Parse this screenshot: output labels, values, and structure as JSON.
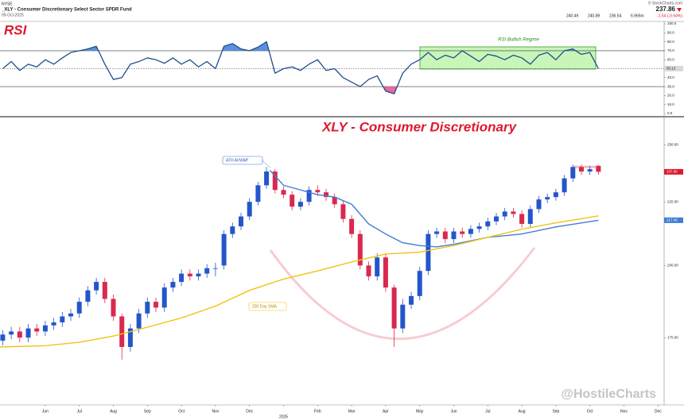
{
  "header": {
    "exchange": "NYSE",
    "title": "_XLY - Consumer Discretionary Select Sector SPDR Fund",
    "date": "09-Oct-2025",
    "source": "© StockCharts.com",
    "volume": "6.965m",
    "change": "-1.54 (-0.64%)"
  },
  "chart_data": [
    {
      "type": "line",
      "title": "RSI",
      "annotation": "RSI Bullish Regime",
      "color": "#1f4e8c",
      "x": [
        -0.25,
        0,
        0.25,
        0.5,
        0.75,
        1,
        1.25,
        1.5,
        1.75,
        2,
        2.25,
        2.5,
        2.75,
        3,
        3.25,
        3.5,
        3.75,
        4,
        4.25,
        4.5,
        4.75,
        5,
        5.25,
        5.5,
        5.75,
        6,
        6.25,
        6.5,
        6.75,
        7,
        7.25,
        7.5,
        7.75,
        8,
        8.25,
        8.5,
        8.75,
        9,
        9.25,
        9.5,
        9.75,
        10,
        10.25,
        10.5,
        10.75,
        11,
        11.25,
        11.5,
        11.75,
        12,
        12.25,
        12.5,
        12.75,
        13,
        13.25,
        13.5,
        13.75,
        14,
        14.25,
        14.5,
        14.75,
        15,
        15.25,
        15.5,
        15.75,
        16,
        16.25,
        16.5,
        16.75,
        17,
        17.25
      ],
      "values": [
        50,
        58,
        48,
        55,
        52,
        60,
        55,
        62,
        68,
        70,
        72,
        75,
        55,
        38,
        40,
        55,
        58,
        62,
        60,
        56,
        62,
        55,
        60,
        52,
        58,
        50,
        75,
        78,
        72,
        70,
        74,
        80,
        45,
        50,
        52,
        48,
        55,
        60,
        48,
        50,
        40,
        35,
        30,
        38,
        42,
        25,
        22,
        45,
        55,
        60,
        68,
        60,
        65,
        62,
        70,
        64,
        58,
        66,
        64,
        60,
        65,
        62,
        55,
        65,
        68,
        60,
        70,
        72,
        66,
        68,
        50.12
      ],
      "xlim": [
        -0.33,
        19.18
      ],
      "ylim": [
        0,
        100
      ],
      "yticks": [
        {
          "value": 0,
          "label": "0.0"
        },
        {
          "value": 10,
          "label": "10.0"
        },
        {
          "value": 20,
          "label": "20.0"
        },
        {
          "value": 30,
          "label": "30.0"
        },
        {
          "value": 40,
          "label": "40.0"
        },
        {
          "value": 50,
          "label": "50.0"
        },
        {
          "value": 60,
          "label": "60.0"
        },
        {
          "value": 70,
          "label": "70.0"
        },
        {
          "value": 80,
          "label": "80.0"
        },
        {
          "value": 90,
          "label": "90.0"
        },
        {
          "value": 100,
          "label": "100.0"
        }
      ],
      "overbought": 70,
      "midline": 50,
      "oversold": 30,
      "overbought_fill": "#5b8fe0",
      "oversold_fill": "#e86aa0"
    },
    {
      "type": "candlestick",
      "title": "XLY - Consumer Discretionary",
      "up_color": "#2456c9",
      "down_color": "#d9294f",
      "log_scale": true,
      "candles": {
        "x": [
          -0.25,
          0,
          0.25,
          0.5,
          0.75,
          1,
          1.25,
          1.5,
          1.75,
          2,
          2.25,
          2.5,
          2.75,
          3,
          3.25,
          3.5,
          3.75,
          4,
          4.25,
          4.5,
          4.75,
          5,
          5.25,
          5.5,
          5.75,
          6,
          6.25,
          6.5,
          6.75,
          7,
          7.25,
          7.5,
          7.75,
          8,
          8.25,
          8.5,
          8.75,
          9,
          9.25,
          9.5,
          9.75,
          10,
          10.25,
          10.5,
          10.75,
          11,
          11.25,
          11.5,
          11.75,
          12,
          12.25,
          12.5,
          12.75,
          13,
          13.25,
          13.5,
          13.75,
          14,
          14.25,
          14.5,
          14.75,
          15,
          15.25,
          15.5,
          15.75,
          16,
          16.25,
          16.5,
          16.75,
          17,
          17.25
        ],
        "open": [
          174,
          176,
          177,
          175,
          178,
          177,
          179,
          180,
          182,
          183,
          187,
          191,
          194,
          188,
          182,
          172,
          178,
          183,
          187,
          185,
          192,
          194,
          197,
          196,
          197,
          199,
          200,
          212,
          215,
          219,
          225,
          232,
          238,
          230,
          228,
          223,
          225,
          230,
          229,
          227,
          224,
          218,
          212,
          200,
          196,
          203,
          192,
          178,
          186,
          189,
          198,
          212,
          213,
          210,
          213,
          212,
          214,
          215,
          217,
          219,
          221,
          220,
          216,
          222,
          226,
          227,
          229,
          235,
          240,
          238,
          240.49
        ],
        "high": [
          177.5,
          178.5,
          178.5,
          179.5,
          179.5,
          180.5,
          181.5,
          183.5,
          184.5,
          188.5,
          192.5,
          195.5,
          195.5,
          189.5,
          183,
          179.5,
          184.5,
          188.5,
          188.5,
          193.5,
          195.5,
          198.5,
          198.5,
          198.5,
          200.5,
          201,
          213.5,
          216.5,
          220.5,
          226.5,
          233.5,
          240,
          239,
          231.5,
          229.5,
          226.5,
          231.5,
          232,
          230.5,
          228.5,
          225.5,
          219.5,
          213.5,
          201.5,
          204.5,
          204.5,
          193,
          188,
          190.5,
          199.5,
          213.5,
          214.5,
          214.5,
          214.5,
          214.5,
          215.5,
          216.5,
          218.5,
          220.5,
          222.5,
          222.5,
          221.5,
          223.5,
          227.5,
          228.5,
          230.5,
          236.5,
          241,
          241,
          240.5,
          240.89
        ],
        "low": [
          172.5,
          174.5,
          173.5,
          173.5,
          175.5,
          175.5,
          177.5,
          178.5,
          180.5,
          181.5,
          185.5,
          189.5,
          186.5,
          180.5,
          168,
          170.5,
          176.5,
          181.5,
          183.5,
          183.5,
          190.5,
          192.5,
          194.5,
          194.5,
          195.5,
          196,
          198.5,
          210.5,
          213.5,
          217.5,
          223.5,
          230.5,
          228.5,
          226.5,
          221.5,
          221.5,
          223.5,
          227.5,
          225.5,
          222.5,
          216.5,
          210.5,
          198.5,
          194.5,
          194.5,
          190.5,
          172,
          176.5,
          184.5,
          187.5,
          196.5,
          210.5,
          208.5,
          208.5,
          210.5,
          210.5,
          212.5,
          213.5,
          215.5,
          217.5,
          218.5,
          214.5,
          214.5,
          220.5,
          224.5,
          225.5,
          227.5,
          233.5,
          236.5,
          236.5,
          236.54
        ],
        "close": [
          176,
          177,
          175,
          178,
          177,
          179,
          180,
          182,
          183,
          187,
          191,
          194,
          188,
          182,
          172,
          178,
          183,
          187,
          185,
          192,
          194,
          197,
          196,
          197,
          199,
          199,
          212,
          215,
          219,
          225,
          232,
          238,
          230,
          228,
          223,
          225,
          230,
          229,
          227,
          224,
          218,
          212,
          200,
          196,
          203,
          192,
          178,
          186,
          189,
          198,
          212,
          213,
          210,
          213,
          212,
          214,
          215,
          217,
          219,
          221,
          220,
          216,
          222,
          226,
          227,
          229,
          235,
          240,
          238,
          239,
          237.86
        ]
      },
      "series": [
        {
          "name": "ATH AVWAP",
          "color": "#3f7fd4",
          "x": [
            7.6,
            8,
            8.5,
            9,
            9.5,
            10,
            10.5,
            11,
            11.5,
            12,
            12.5,
            13,
            14,
            15,
            16,
            17.25
          ],
          "values": [
            238.5,
            232,
            230,
            228,
            227,
            224,
            216,
            212,
            208.6,
            207.5,
            207,
            208,
            210.7,
            212,
            214.8,
            217.46
          ]
        },
        {
          "name": "200 Day SMA",
          "color": "#f2c414",
          "x": [
            -0.33,
            1,
            2,
            3,
            4,
            5,
            6,
            7,
            8,
            9,
            10,
            11,
            12,
            13,
            14,
            15,
            16,
            17.25
          ],
          "values": [
            172,
            172.4,
            173.5,
            175.5,
            178.4,
            181.5,
            185.5,
            191,
            195,
            198,
            201.3,
            204.3,
            205,
            207.5,
            210.7,
            213.9,
            216.4,
            219.2
          ]
        }
      ],
      "ath_level": 240,
      "ath_color": "#f4a9b4",
      "xlim": [
        -0.33,
        19.18
      ],
      "ylim": [
        154.5,
        263.4
      ],
      "yticks": [
        {
          "value": 175,
          "label": "175.00"
        },
        {
          "value": 200,
          "label": "200.00"
        },
        {
          "value": 225,
          "label": "225.00"
        },
        {
          "value": 250,
          "label": "250.00"
        }
      ],
      "xticks": [
        {
          "value": 1,
          "label": "Jun"
        },
        {
          "value": 2,
          "label": "Jul"
        },
        {
          "value": 3,
          "label": "Aug"
        },
        {
          "value": 4,
          "label": "Sep"
        },
        {
          "value": 5,
          "label": "Oct"
        },
        {
          "value": 6,
          "label": "Nov"
        },
        {
          "value": 7,
          "label": "Dec"
        },
        {
          "value": 8,
          "label": "2025"
        },
        {
          "value": 9,
          "label": "Feb"
        },
        {
          "value": 10,
          "label": "Mar"
        },
        {
          "value": 11,
          "label": "Apr"
        },
        {
          "value": 12,
          "label": "May"
        },
        {
          "value": 13,
          "label": "Jun"
        },
        {
          "value": 14,
          "label": "Jul"
        },
        {
          "value": 15,
          "label": "Aug"
        },
        {
          "value": 16,
          "label": "Sep"
        },
        {
          "value": 17,
          "label": "Oct"
        },
        {
          "value": 18,
          "label": "Nov"
        },
        {
          "value": 19,
          "label": "Dec"
        }
      ]
    }
  ],
  "watermark": "@HostileCharts"
}
